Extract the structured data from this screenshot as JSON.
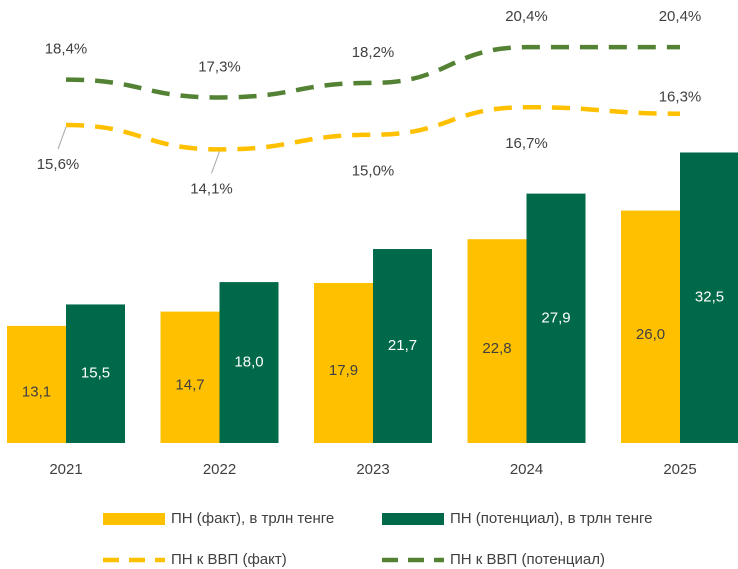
{
  "chart_data": {
    "type": "bar_line",
    "categories": [
      "2021",
      "2022",
      "2023",
      "2024",
      "2025"
    ],
    "ylim": [
      0,
      49
    ],
    "y2lim": [
      -4,
      23
    ],
    "series": [
      {
        "name": "ПН (факт), в трлн тенге",
        "type": "bar",
        "color": "#ffc000",
        "values": [
          13.1,
          14.7,
          17.9,
          22.8,
          26.0
        ],
        "value_labels": [
          "13,1",
          "14,7",
          "17,9",
          "22,8",
          "26,0"
        ]
      },
      {
        "name": "ПН (потенциал), в трлн тенге",
        "type": "bar",
        "color": "#00694a",
        "values": [
          15.5,
          18.0,
          21.7,
          27.9,
          32.5
        ],
        "value_labels": [
          "15,5",
          "18,0",
          "21,7",
          "27,9",
          "32,5"
        ]
      },
      {
        "name": "ПН к ВВП (факт)",
        "type": "line",
        "axis": "y2",
        "color": "#ffc000",
        "values": [
          15.6,
          14.1,
          15.0,
          16.7,
          16.3
        ],
        "value_labels": [
          "15,6%",
          "14,1%",
          "15,0%",
          "16,7%",
          "16,3%"
        ]
      },
      {
        "name": "ПН к ВВП (потенциал)",
        "type": "line",
        "axis": "y2",
        "color": "#548235",
        "values": [
          18.4,
          17.3,
          18.2,
          20.4,
          20.4
        ],
        "value_labels": [
          "18,4%",
          "17,3%",
          "18,2%",
          "20,4%",
          "20,4%"
        ]
      }
    ]
  }
}
